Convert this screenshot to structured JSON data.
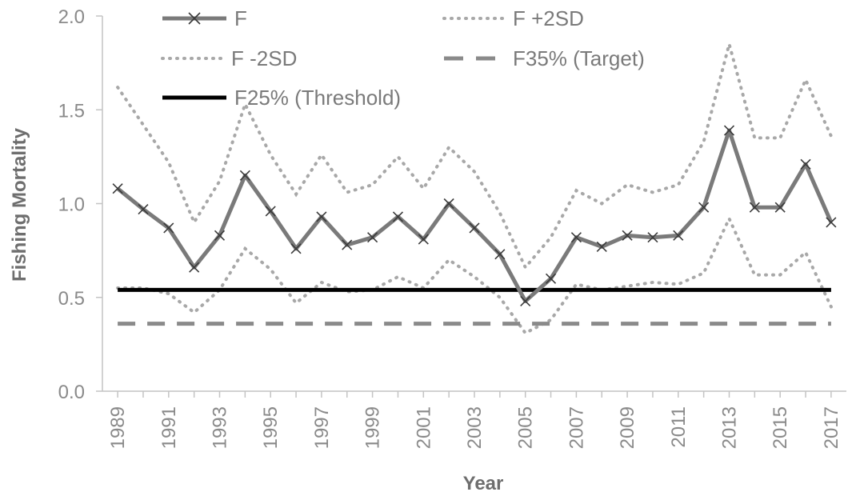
{
  "chart_data": {
    "type": "line",
    "xlabel": "Year",
    "ylabel": "Fishing Mortality",
    "ylim": [
      0,
      2.0
    ],
    "y_ticks": [
      "0.0",
      "0.5",
      "1.0",
      "1.5",
      "2.0"
    ],
    "x_ticks": [
      "1989",
      "1991",
      "1993",
      "1995",
      "1997",
      "1999",
      "2001",
      "2003",
      "2005",
      "2007",
      "2009",
      "2011",
      "2013",
      "2015",
      "2017"
    ],
    "x": [
      1989,
      1990,
      1991,
      1992,
      1993,
      1994,
      1995,
      1996,
      1997,
      1998,
      1999,
      2000,
      2001,
      2002,
      2003,
      2004,
      2005,
      2006,
      2007,
      2008,
      2009,
      2010,
      2011,
      2012,
      2013,
      2014,
      2015,
      2016,
      2017
    ],
    "series": [
      {
        "name": "F",
        "style": "solid-x",
        "color": "#7a7a7a",
        "values": [
          1.08,
          0.97,
          0.87,
          0.66,
          0.83,
          1.15,
          0.96,
          0.76,
          0.93,
          0.78,
          0.82,
          0.93,
          0.81,
          1.0,
          0.87,
          0.73,
          0.48,
          0.6,
          0.82,
          0.77,
          0.83,
          0.82,
          0.83,
          0.98,
          1.39,
          0.98,
          0.98,
          1.21,
          0.9
        ]
      },
      {
        "name": "F +2SD",
        "style": "dotted",
        "color": "#a8a8a8",
        "values": [
          1.62,
          1.42,
          1.22,
          0.9,
          1.12,
          1.53,
          1.26,
          1.05,
          1.26,
          1.06,
          1.1,
          1.25,
          1.08,
          1.3,
          1.17,
          0.95,
          0.66,
          0.82,
          1.07,
          1.0,
          1.1,
          1.06,
          1.1,
          1.33,
          1.85,
          1.35,
          1.35,
          1.66,
          1.36
        ]
      },
      {
        "name": "F -2SD",
        "style": "dotted",
        "color": "#a8a8a8",
        "values": [
          0.55,
          0.55,
          0.52,
          0.42,
          0.54,
          0.76,
          0.65,
          0.47,
          0.58,
          0.53,
          0.54,
          0.61,
          0.55,
          0.7,
          0.61,
          0.5,
          0.31,
          0.38,
          0.57,
          0.54,
          0.56,
          0.58,
          0.57,
          0.63,
          0.92,
          0.62,
          0.62,
          0.74,
          0.45
        ]
      },
      {
        "name": "F35% (Target)",
        "style": "dashed",
        "color": "#8a8a8a",
        "values": [
          0.36,
          0.36,
          0.36,
          0.36,
          0.36,
          0.36,
          0.36,
          0.36,
          0.36,
          0.36,
          0.36,
          0.36,
          0.36,
          0.36,
          0.36,
          0.36,
          0.36,
          0.36,
          0.36,
          0.36,
          0.36,
          0.36,
          0.36,
          0.36,
          0.36,
          0.36,
          0.36,
          0.36,
          0.36
        ]
      },
      {
        "name": "F25% (Threshold)",
        "style": "solid",
        "color": "#000000",
        "values": [
          0.54,
          0.54,
          0.54,
          0.54,
          0.54,
          0.54,
          0.54,
          0.54,
          0.54,
          0.54,
          0.54,
          0.54,
          0.54,
          0.54,
          0.54,
          0.54,
          0.54,
          0.54,
          0.54,
          0.54,
          0.54,
          0.54,
          0.54,
          0.54,
          0.54,
          0.54,
          0.54,
          0.54,
          0.54
        ]
      }
    ],
    "grid": false,
    "legend_position": "top"
  }
}
